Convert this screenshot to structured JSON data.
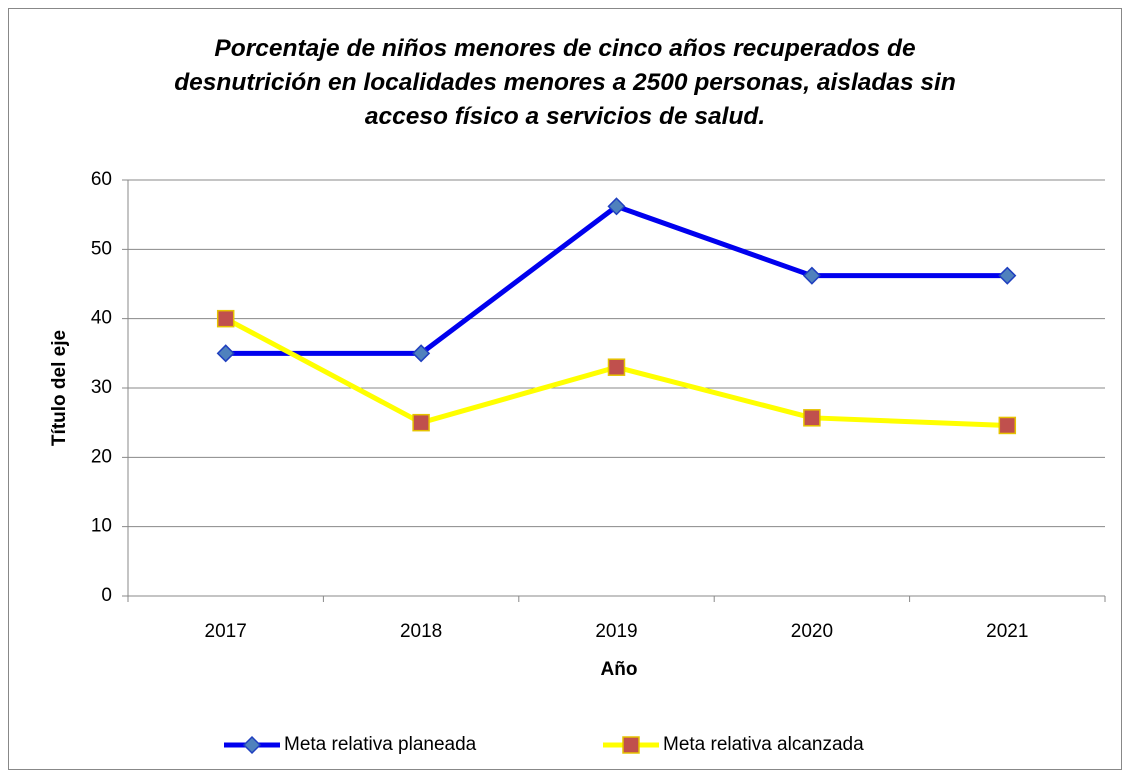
{
  "chart_data": {
    "type": "line",
    "title": "Porcentaje de niños menores de cinco años recuperados de desnutrición en localidades menores a 2500 personas, aisladas sin acceso físico a servicios de salud.",
    "xlabel": "Año",
    "ylabel": "Título del eje",
    "categories": [
      "2017",
      "2018",
      "2019",
      "2020",
      "2021"
    ],
    "series": [
      {
        "name": "Meta relativa planeada",
        "color": "#0000ee",
        "marker_color": "#4f81bd",
        "marker": "diamond",
        "values": [
          35,
          35,
          56.2,
          46.2,
          46.2
        ]
      },
      {
        "name": "Meta relativa alcanzada",
        "color": "#ffff00",
        "marker_color": "#c0504d",
        "marker": "square",
        "values": [
          40,
          25,
          33,
          25.7,
          24.6
        ]
      }
    ],
    "ylim": [
      0,
      60
    ],
    "yticks": [
      0,
      10,
      20,
      30,
      40,
      50,
      60
    ],
    "grid": true,
    "legend": "bottom"
  }
}
